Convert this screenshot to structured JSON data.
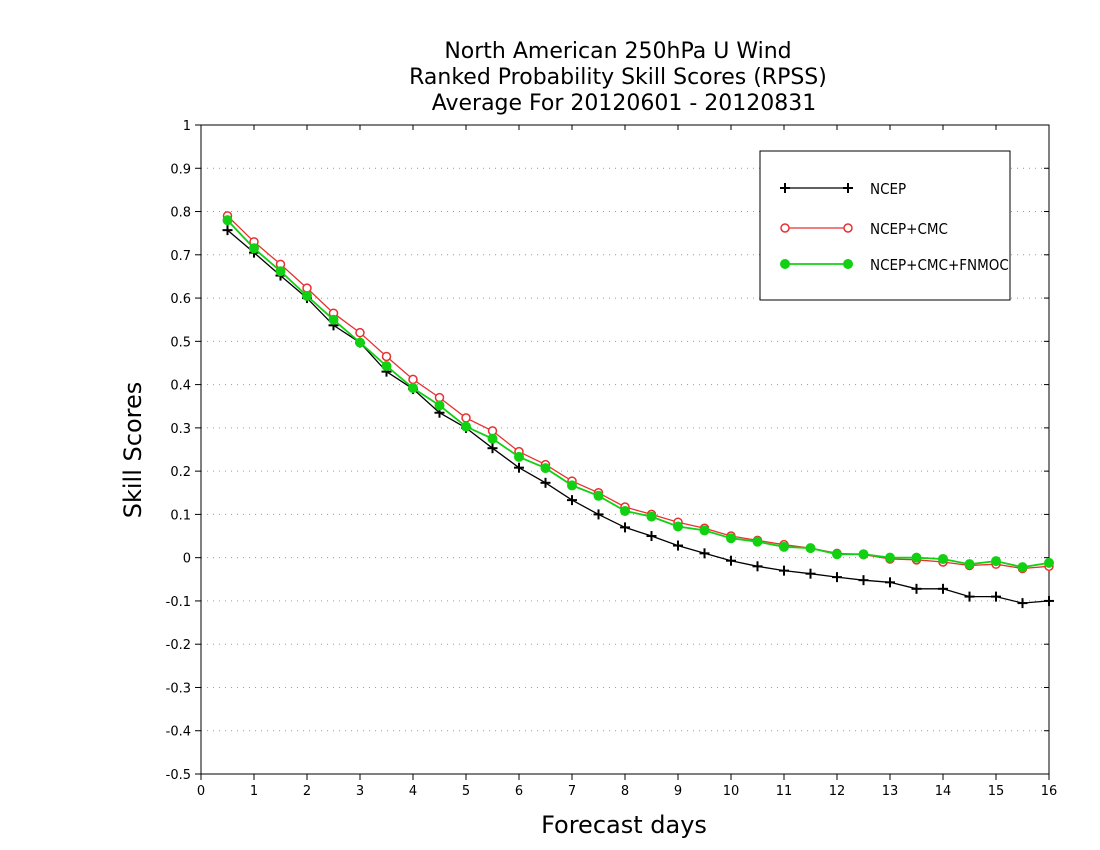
{
  "chart_data": {
    "type": "line",
    "title_lines": [
      "North American 250hPa U Wind",
      "Ranked Probability Skill Scores (RPSS)",
      "Average For 20120601 - 20120831"
    ],
    "xlabel": "Forecast days",
    "ylabel": "Skill Scores",
    "xlim": [
      0,
      16
    ],
    "ylim": [
      -0.5,
      1
    ],
    "xticks": [
      0,
      1,
      2,
      3,
      4,
      5,
      6,
      7,
      8,
      9,
      10,
      11,
      12,
      13,
      14,
      15,
      16
    ],
    "yticks": [
      -0.5,
      -0.4,
      -0.3,
      -0.2,
      -0.1,
      0,
      0.1,
      0.2,
      0.3,
      0.4,
      0.5,
      0.6,
      0.7,
      0.8,
      0.9,
      1
    ],
    "ytick_labels": [
      "-0.5",
      "-0.4",
      "-0.3",
      "-0.2",
      "-0.1",
      "0",
      "0.1",
      "0.2",
      "0.3",
      "0.4",
      "0.5",
      "0.6",
      "0.7",
      "0.8",
      "0.9",
      "1"
    ],
    "grid": true,
    "legend_position": "top-right",
    "x": [
      0.5,
      1,
      1.5,
      2,
      2.5,
      3,
      3.5,
      4,
      4.5,
      5,
      5.5,
      6,
      6.5,
      7,
      7.5,
      8,
      8.5,
      9,
      9.5,
      10,
      10.5,
      11,
      11.5,
      12,
      12.5,
      13,
      13.5,
      14,
      14.5,
      15,
      15.5,
      16
    ],
    "series": [
      {
        "name": "NCEP",
        "color": "#000000",
        "marker": "plus",
        "values": [
          0.757,
          0.705,
          0.652,
          0.6,
          0.537,
          0.497,
          0.43,
          0.39,
          0.335,
          0.3,
          0.253,
          0.208,
          0.173,
          0.133,
          0.1,
          0.07,
          0.05,
          0.028,
          0.01,
          -0.007,
          -0.02,
          -0.03,
          -0.037,
          -0.045,
          -0.052,
          -0.057,
          -0.072,
          -0.072,
          -0.09,
          -0.09,
          -0.105,
          -0.1
        ]
      },
      {
        "name": "NCEP+CMC",
        "color": "#e83030",
        "marker": "open-circle",
        "values": [
          0.79,
          0.73,
          0.678,
          0.623,
          0.565,
          0.52,
          0.465,
          0.412,
          0.37,
          0.323,
          0.293,
          0.245,
          0.215,
          0.177,
          0.15,
          0.117,
          0.1,
          0.082,
          0.068,
          0.05,
          0.04,
          0.03,
          0.022,
          0.01,
          0.007,
          -0.003,
          -0.005,
          -0.01,
          -0.018,
          -0.015,
          -0.025,
          -0.02
        ]
      },
      {
        "name": "NCEP+CMC+FNMOC",
        "color": "#12d012",
        "marker": "filled-circle",
        "values": [
          0.78,
          0.715,
          0.662,
          0.605,
          0.55,
          0.497,
          0.443,
          0.392,
          0.352,
          0.303,
          0.275,
          0.233,
          0.207,
          0.167,
          0.143,
          0.108,
          0.095,
          0.072,
          0.063,
          0.045,
          0.037,
          0.025,
          0.022,
          0.008,
          0.008,
          0.0,
          0.0,
          -0.003,
          -0.015,
          -0.008,
          -0.022,
          -0.012
        ]
      }
    ]
  }
}
